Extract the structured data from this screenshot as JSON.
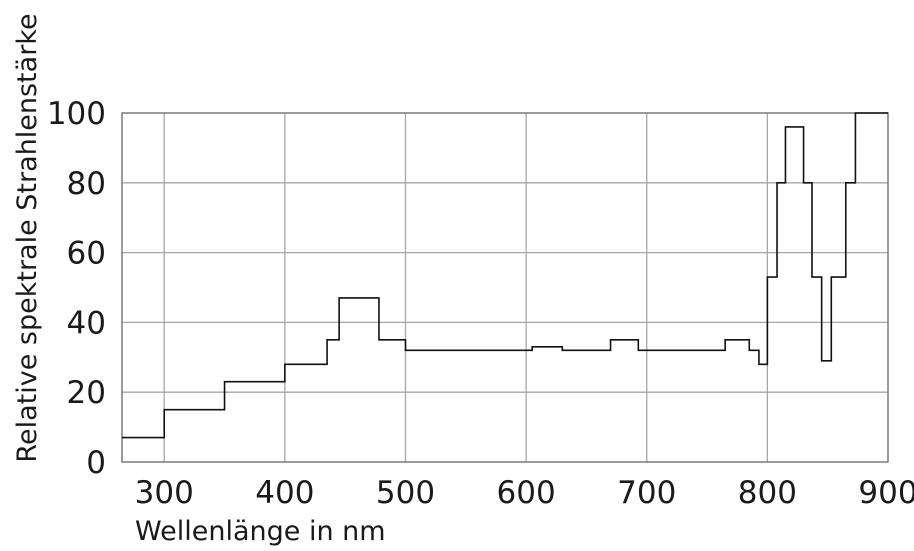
{
  "chart_data": {
    "type": "line",
    "step": true,
    "xlabel": "Wellenlänge in nm",
    "ylabel": "Relative spektrale Strahlenstärke",
    "xlim": [
      265,
      900
    ],
    "ylim": [
      0,
      100
    ],
    "x_ticks": [
      300,
      400,
      500,
      600,
      700,
      800,
      900
    ],
    "y_ticks": [
      0,
      20,
      40,
      60,
      80,
      100
    ],
    "grid": true,
    "series": [
      {
        "x": [
          265,
          300,
          300,
          350,
          350,
          400,
          400,
          435,
          435,
          445,
          445,
          478,
          478,
          500,
          500,
          605,
          605,
          630,
          630,
          670,
          670,
          693,
          693,
          765,
          765,
          785,
          785,
          793,
          793,
          800,
          800,
          808,
          808,
          815,
          815,
          830,
          830,
          837,
          837,
          845,
          845,
          853,
          853,
          865,
          865,
          873,
          873,
          900
        ],
        "y": [
          7,
          7,
          15,
          15,
          23,
          23,
          28,
          28,
          35,
          35,
          47,
          47,
          35,
          35,
          32,
          32,
          33,
          33,
          32,
          32,
          35,
          35,
          32,
          32,
          35,
          35,
          32,
          32,
          28,
          28,
          53,
          53,
          80,
          80,
          96,
          96,
          80,
          80,
          53,
          53,
          29,
          29,
          53,
          53,
          80,
          80,
          100,
          100
        ]
      }
    ]
  }
}
